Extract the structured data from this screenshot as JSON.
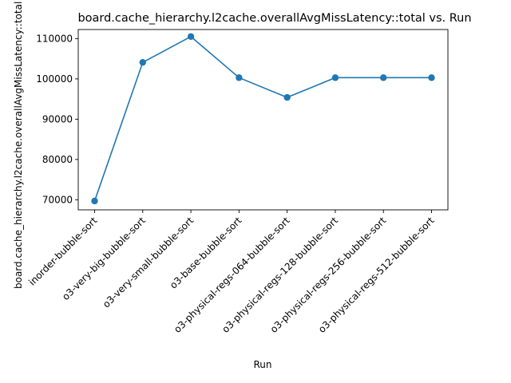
{
  "chart_data": {
    "type": "line",
    "title": "board.cache_hierarchy.l2cache.overallAvgMissLatency::total vs. Run",
    "xlabel": "Run",
    "ylabel": "board.cache_hierarchy.l2cache.overallAvgMissLatency::total",
    "categories": [
      "inorder-bubble-sort",
      "o3-very-big-bubble-sort",
      "o3-very-small-bubble-sort",
      "o3-base-bubble-sort",
      "o3-physical-regs-064-bubble-sort",
      "o3-physical-regs-128-bubble-sort",
      "o3-physical-regs-256-bubble-sort",
      "o3-physical-regs-512-bubble-sort"
    ],
    "series": [
      {
        "values": [
          69700,
          104100,
          110500,
          100300,
          95400,
          100300,
          100300,
          100300
        ],
        "color": "#1f77b4",
        "marker": "circle"
      }
    ],
    "yticks": [
      70000,
      80000,
      90000,
      100000,
      110000
    ],
    "ylim": [
      67500,
      112250
    ],
    "grid": false,
    "legend": "none"
  }
}
